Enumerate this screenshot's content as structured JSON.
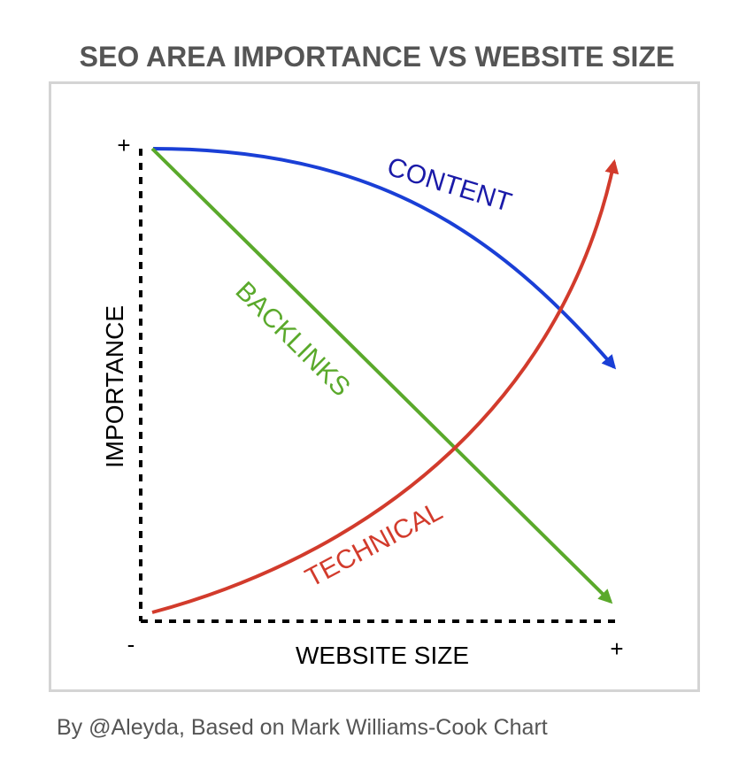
{
  "header": {
    "title": "SEO AREA IMPORTANCE VS WEBSITE SIZE"
  },
  "footer": {
    "credit": "By @Aleyda, Based on Mark Williams-Cook Chart"
  },
  "chart_data": {
    "type": "line",
    "title": "SEO AREA IMPORTANCE VS WEBSITE SIZE",
    "xlabel": "WEBSITE SIZE",
    "ylabel": "IMPORTANCE",
    "x_ticks": {
      "min": "-",
      "max": "+"
    },
    "y_ticks": {
      "max": "+"
    },
    "xlim": [
      0,
      1
    ],
    "ylim": [
      0,
      1
    ],
    "grid": false,
    "legend": "none",
    "series": [
      {
        "name": "CONTENT",
        "color": "#1a3fd6",
        "label_color": "#1a1aa8",
        "points": [
          [
            0.02,
            1.0
          ],
          [
            0.3,
            0.97
          ],
          [
            0.55,
            0.83
          ],
          [
            0.75,
            0.65
          ],
          [
            1.0,
            0.53
          ]
        ]
      },
      {
        "name": "BACKLINKS",
        "color": "#5aa92b",
        "label_color": "#5aa92b",
        "points": [
          [
            0.02,
            1.0
          ],
          [
            1.0,
            0.04
          ]
        ]
      },
      {
        "name": "TECHNICAL",
        "color": "#d23b2c",
        "label_color": "#d23b2c",
        "points": [
          [
            0.02,
            0.01
          ],
          [
            0.3,
            0.13
          ],
          [
            0.55,
            0.34
          ],
          [
            0.8,
            0.68
          ],
          [
            1.0,
            0.99
          ]
        ]
      }
    ]
  }
}
